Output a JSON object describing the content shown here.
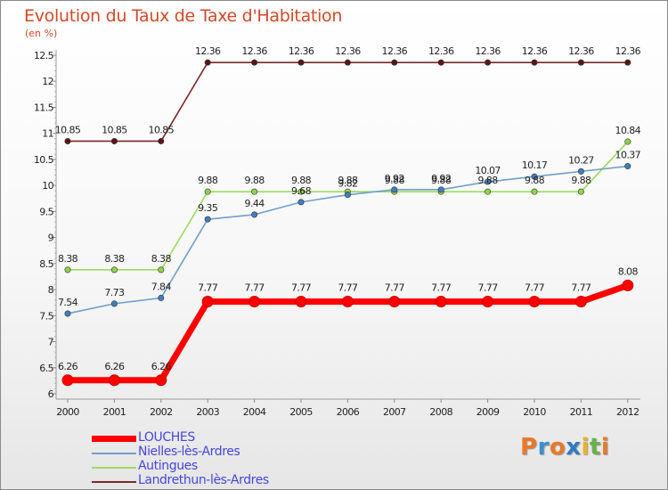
{
  "chart_data": {
    "type": "line",
    "title": "Evolution du Taux de Taxe d'Habitation",
    "subtitle": "(en %)",
    "xlabel": "",
    "ylabel": "(en %)",
    "categories": [
      "2000",
      "2001",
      "2002",
      "2003",
      "2004",
      "2005",
      "2006",
      "2007",
      "2008",
      "2009",
      "2010",
      "2011",
      "2012"
    ],
    "ylim": [
      6,
      12.5
    ],
    "yticks": [
      6,
      6.5,
      7,
      7.5,
      8,
      8.5,
      9,
      9.5,
      10,
      10.5,
      11,
      11.5,
      12,
      12.5
    ],
    "ytick_labels": [
      "6",
      "6.5",
      "7",
      "7.5",
      "8",
      "8.5",
      "9",
      "9.5",
      "10",
      "10.5",
      "11",
      "11.5",
      "12",
      "12.5"
    ],
    "grid": false,
    "legend_position": "bottom-left",
    "series": [
      {
        "name": "LOUCHES",
        "color": "#ff0000",
        "values": [
          6.26,
          6.26,
          6.26,
          7.77,
          7.77,
          7.77,
          7.77,
          7.77,
          7.77,
          7.77,
          7.77,
          7.77,
          8.08
        ],
        "labels": [
          "6.26",
          "6.26",
          "6.26",
          "7.77",
          "7.77",
          "7.77",
          "7.77",
          "7.77",
          "7.77",
          "7.77",
          "7.77",
          "7.77",
          "8.08"
        ]
      },
      {
        "name": "Nielles-lès-Ardres",
        "color": "#6f9fcb",
        "values": [
          7.54,
          7.73,
          7.84,
          9.35,
          9.44,
          9.68,
          9.82,
          9.92,
          9.92,
          10.07,
          10.17,
          10.27,
          10.37
        ],
        "labels": [
          "7.54",
          "7.73",
          "7.84",
          "9.35",
          "9.44",
          "9.68",
          "9.82",
          "9.92",
          "9.92",
          "10.07",
          "10.17",
          "10.27",
          "10.37"
        ]
      },
      {
        "name": "Autingues",
        "color": "#9bdc5f",
        "values": [
          8.38,
          8.38,
          8.38,
          9.88,
          9.88,
          9.88,
          9.88,
          9.88,
          9.88,
          9.88,
          9.88,
          9.88,
          10.84
        ],
        "labels": [
          "8.38",
          "8.38",
          "8.38",
          "9.88",
          "9.88",
          "9.88",
          "9.88",
          "9.88",
          "9.88",
          "9.88",
          "9.88",
          "9.88",
          "10.84"
        ]
      },
      {
        "name": "Landrethun-lès-Ardres",
        "color": "#7a2a2a",
        "values": [
          10.85,
          10.85,
          10.85,
          12.36,
          12.36,
          12.36,
          12.36,
          12.36,
          12.36,
          12.36,
          12.36,
          12.36,
          12.36
        ],
        "labels": [
          "10.85",
          "10.85",
          "10.85",
          "12.36",
          "12.36",
          "12.36",
          "12.36",
          "12.36",
          "12.36",
          "12.36",
          "12.36",
          "12.36",
          "12.36"
        ]
      }
    ]
  },
  "brand": {
    "letters": [
      "P",
      "r",
      "o",
      "x",
      "i",
      "t",
      "i"
    ],
    "colors": [
      "#e8792a",
      "#3b8fd0",
      "#e8792a",
      "#2f7bc0",
      "#f0b22a",
      "#6ab04a",
      "#e8792a"
    ]
  }
}
